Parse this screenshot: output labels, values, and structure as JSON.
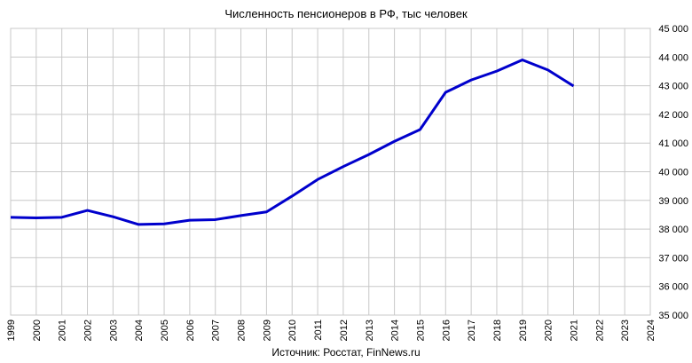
{
  "chart_data": {
    "type": "line",
    "title": "Численность пенсионеров в РФ, тыс человек",
    "source": "Источник: Росстат, FinNews.ru",
    "x": [
      1999,
      2000,
      2001,
      2002,
      2003,
      2004,
      2005,
      2006,
      2007,
      2008,
      2009,
      2010,
      2011,
      2012,
      2013,
      2014,
      2015,
      2016,
      2017,
      2018,
      2019,
      2020,
      2021
    ],
    "series": [
      {
        "name": "Численность пенсионеров",
        "color": "#0000cc",
        "values": [
          38410,
          38390,
          38410,
          38650,
          38430,
          38160,
          38180,
          38310,
          38330,
          38470,
          38600,
          39150,
          39730,
          40180,
          40600,
          41060,
          41470,
          42770,
          43200,
          43510,
          43900,
          43550,
          42990
        ]
      }
    ],
    "xlim": [
      1999,
      2024
    ],
    "xticks": [
      1999,
      2000,
      2001,
      2002,
      2003,
      2004,
      2005,
      2006,
      2007,
      2008,
      2009,
      2010,
      2011,
      2012,
      2013,
      2014,
      2015,
      2016,
      2017,
      2018,
      2019,
      2020,
      2021,
      2022,
      2023,
      2024
    ],
    "ylim": [
      35000,
      45000
    ],
    "yticks": [
      {
        "value": 35000,
        "label": "35 000"
      },
      {
        "value": 36000,
        "label": "36 000"
      },
      {
        "value": 37000,
        "label": "37 000"
      },
      {
        "value": 38000,
        "label": "38 000"
      },
      {
        "value": 39000,
        "label": "39 000"
      },
      {
        "value": 40000,
        "label": "40 000"
      },
      {
        "value": 41000,
        "label": "41 000"
      },
      {
        "value": 42000,
        "label": "42 000"
      },
      {
        "value": 43000,
        "label": "43 000"
      },
      {
        "value": 44000,
        "label": "44 000"
      },
      {
        "value": 45000,
        "label": "45 000"
      }
    ],
    "grid": true
  }
}
